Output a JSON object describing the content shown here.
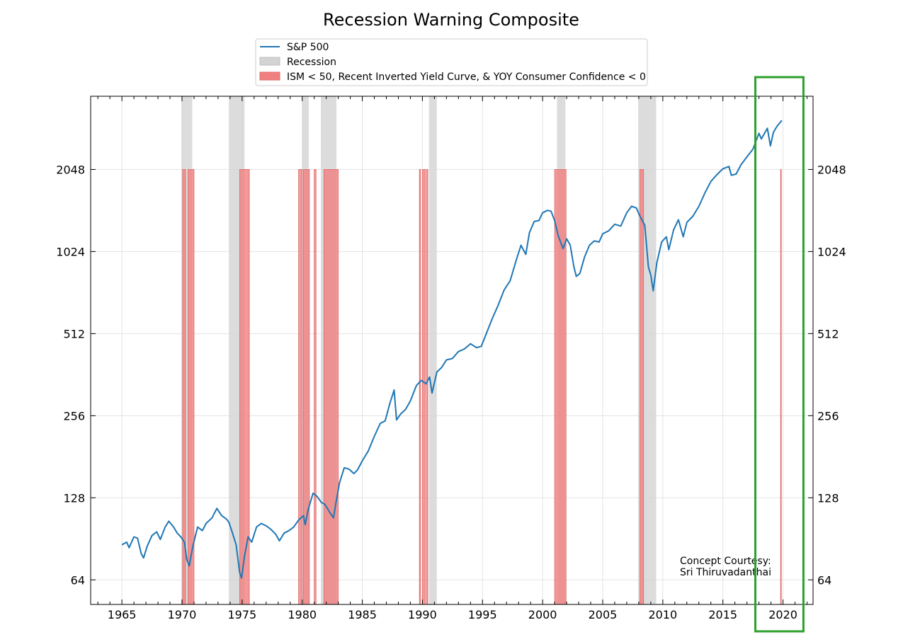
{
  "chart_data": {
    "type": "line",
    "title": "Recession Warning Composite",
    "xlabel": "",
    "ylabel": "",
    "y_scale": "log2",
    "x_range": [
      1962.4,
      2022.5
    ],
    "y_range": [
      52,
      3800
    ],
    "grid": true,
    "legend_position": "top-center",
    "x_ticks": [
      1965,
      1970,
      1975,
      1980,
      1985,
      1990,
      1995,
      2000,
      2005,
      2010,
      2015,
      2020
    ],
    "y_ticks": [
      64,
      128,
      256,
      512,
      1024,
      2048
    ],
    "series": [
      {
        "name": "S&P 500",
        "color": "#1f77b4",
        "points": [
          [
            1965.0,
            86
          ],
          [
            1965.4,
            88
          ],
          [
            1965.6,
            84
          ],
          [
            1966.0,
            92
          ],
          [
            1966.3,
            91
          ],
          [
            1966.6,
            80
          ],
          [
            1966.8,
            77
          ],
          [
            1967.1,
            85
          ],
          [
            1967.5,
            93
          ],
          [
            1967.9,
            96
          ],
          [
            1968.2,
            90
          ],
          [
            1968.6,
            100
          ],
          [
            1968.9,
            105
          ],
          [
            1969.3,
            100
          ],
          [
            1969.6,
            95
          ],
          [
            1969.9,
            92
          ],
          [
            1970.2,
            88
          ],
          [
            1970.4,
            76
          ],
          [
            1970.6,
            72
          ],
          [
            1970.9,
            85
          ],
          [
            1971.3,
            100
          ],
          [
            1971.7,
            97
          ],
          [
            1972.0,
            103
          ],
          [
            1972.5,
            108
          ],
          [
            1972.9,
            117
          ],
          [
            1973.3,
            110
          ],
          [
            1973.7,
            107
          ],
          [
            1973.9,
            104
          ],
          [
            1974.2,
            95
          ],
          [
            1974.5,
            86
          ],
          [
            1974.8,
            68
          ],
          [
            1974.95,
            65
          ],
          [
            1975.2,
            78
          ],
          [
            1975.5,
            92
          ],
          [
            1975.8,
            88
          ],
          [
            1976.2,
            100
          ],
          [
            1976.6,
            103
          ],
          [
            1977.0,
            101
          ],
          [
            1977.4,
            98
          ],
          [
            1977.8,
            94
          ],
          [
            1978.1,
            89
          ],
          [
            1978.5,
            95
          ],
          [
            1978.9,
            97
          ],
          [
            1979.3,
            100
          ],
          [
            1979.7,
            106
          ],
          [
            1980.1,
            110
          ],
          [
            1980.25,
            102
          ],
          [
            1980.5,
            116
          ],
          [
            1980.9,
            133
          ],
          [
            1981.2,
            130
          ],
          [
            1981.6,
            123
          ],
          [
            1981.9,
            121
          ],
          [
            1982.3,
            113
          ],
          [
            1982.6,
            108
          ],
          [
            1982.8,
            122
          ],
          [
            1983.1,
            145
          ],
          [
            1983.5,
            165
          ],
          [
            1983.9,
            163
          ],
          [
            1984.3,
            157
          ],
          [
            1984.6,
            162
          ],
          [
            1985.0,
            175
          ],
          [
            1985.5,
            190
          ],
          [
            1986.0,
            215
          ],
          [
            1986.5,
            240
          ],
          [
            1986.9,
            245
          ],
          [
            1987.3,
            285
          ],
          [
            1987.65,
            318
          ],
          [
            1987.85,
            247
          ],
          [
            1988.2,
            260
          ],
          [
            1988.6,
            270
          ],
          [
            1989.0,
            290
          ],
          [
            1989.5,
            330
          ],
          [
            1989.9,
            345
          ],
          [
            1990.3,
            335
          ],
          [
            1990.6,
            355
          ],
          [
            1990.8,
            310
          ],
          [
            1991.2,
            370
          ],
          [
            1991.6,
            385
          ],
          [
            1992.0,
            410
          ],
          [
            1992.5,
            415
          ],
          [
            1993.0,
            440
          ],
          [
            1993.5,
            450
          ],
          [
            1994.0,
            470
          ],
          [
            1994.5,
            455
          ],
          [
            1994.9,
            460
          ],
          [
            1995.3,
            510
          ],
          [
            1995.8,
            580
          ],
          [
            1996.3,
            650
          ],
          [
            1996.8,
            740
          ],
          [
            1997.3,
            800
          ],
          [
            1997.8,
            950
          ],
          [
            1998.2,
            1080
          ],
          [
            1998.6,
            1000
          ],
          [
            1998.9,
            1200
          ],
          [
            1999.3,
            1320
          ],
          [
            1999.7,
            1330
          ],
          [
            2000.0,
            1420
          ],
          [
            2000.4,
            1450
          ],
          [
            2000.7,
            1440
          ],
          [
            2001.0,
            1330
          ],
          [
            2001.3,
            1170
          ],
          [
            2001.7,
            1050
          ],
          [
            2002.0,
            1140
          ],
          [
            2002.3,
            1080
          ],
          [
            2002.6,
            900
          ],
          [
            2002.8,
            830
          ],
          [
            2003.1,
            850
          ],
          [
            2003.5,
            980
          ],
          [
            2003.9,
            1080
          ],
          [
            2004.3,
            1120
          ],
          [
            2004.7,
            1110
          ],
          [
            2005.0,
            1190
          ],
          [
            2005.5,
            1220
          ],
          [
            2006.0,
            1290
          ],
          [
            2006.5,
            1270
          ],
          [
            2007.0,
            1420
          ],
          [
            2007.4,
            1500
          ],
          [
            2007.8,
            1480
          ],
          [
            2008.1,
            1380
          ],
          [
            2008.5,
            1280
          ],
          [
            2008.8,
            900
          ],
          [
            2009.0,
            840
          ],
          [
            2009.2,
            735
          ],
          [
            2009.5,
            930
          ],
          [
            2009.9,
            1110
          ],
          [
            2010.3,
            1160
          ],
          [
            2010.5,
            1040
          ],
          [
            2010.9,
            1230
          ],
          [
            2011.3,
            1340
          ],
          [
            2011.7,
            1160
          ],
          [
            2012.0,
            1310
          ],
          [
            2012.5,
            1380
          ],
          [
            2013.0,
            1500
          ],
          [
            2013.5,
            1680
          ],
          [
            2014.0,
            1850
          ],
          [
            2014.5,
            1960
          ],
          [
            2015.0,
            2060
          ],
          [
            2015.5,
            2100
          ],
          [
            2015.7,
            1950
          ],
          [
            2016.1,
            1970
          ],
          [
            2016.5,
            2130
          ],
          [
            2017.0,
            2280
          ],
          [
            2017.5,
            2430
          ],
          [
            2018.0,
            2780
          ],
          [
            2018.2,
            2650
          ],
          [
            2018.7,
            2900
          ],
          [
            2018.95,
            2500
          ],
          [
            2019.2,
            2800
          ],
          [
            2019.5,
            2950
          ],
          [
            2019.9,
            3100
          ]
        ]
      }
    ],
    "recessions": {
      "name": "Recession",
      "color": "#d3d3d3",
      "periods": [
        [
          1969.95,
          1970.85
        ],
        [
          1973.9,
          1975.2
        ],
        [
          1980.0,
          1980.55
        ],
        [
          1981.55,
          1982.85
        ],
        [
          1990.55,
          1991.2
        ],
        [
          2001.2,
          2001.9
        ],
        [
          2007.95,
          2009.45
        ]
      ]
    },
    "warnings": {
      "name": "ISM < 50, Recent Inverted Yield Curve, & YOY Consumer Confidence < 0",
      "color": "#f08080",
      "top_value": 2048,
      "periods": [
        [
          1970.05,
          1970.3
        ],
        [
          1970.5,
          1971.0
        ],
        [
          1974.8,
          1975.6
        ],
        [
          1979.7,
          1980.0
        ],
        [
          1980.1,
          1980.6
        ],
        [
          1981.0,
          1981.15
        ],
        [
          1981.8,
          1983.0
        ],
        [
          1989.75,
          1989.85
        ],
        [
          1990.0,
          1990.25
        ],
        [
          1990.35,
          1990.45
        ],
        [
          2001.0,
          2001.95
        ],
        [
          2008.1,
          2008.4
        ],
        [
          2019.8,
          2019.85
        ]
      ]
    },
    "annotation": [
      "Concept Courtesy:",
      "Sri Thiruvadanthai"
    ],
    "highlight_box": {
      "x_range": [
        2017.7,
        2021.7
      ],
      "color": "#2ca02c"
    }
  }
}
